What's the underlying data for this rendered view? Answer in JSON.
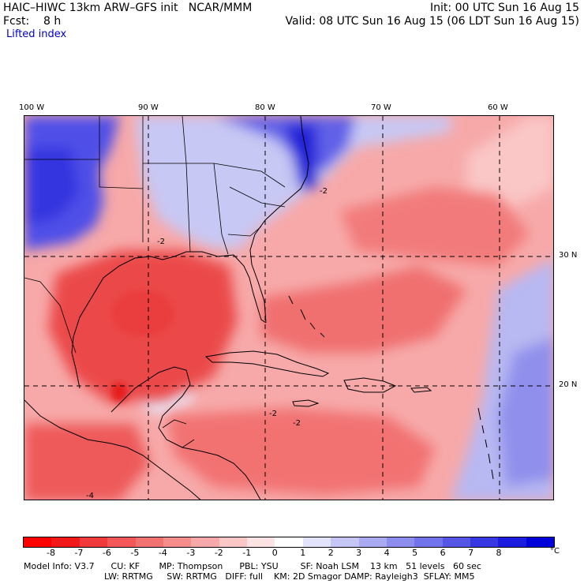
{
  "header": {
    "title_line": "HAIC–HIWC 13km ARW–GFS init   NCAR/MMM",
    "fcst_line": "Fcst:    8 h",
    "init_line": "Init: 00 UTC Sun 16 Aug 15",
    "valid_line": "Valid: 08 UTC Sun 16 Aug 15 (06 LDT Sun 16 Aug 15)",
    "field_name": "Lifted index"
  },
  "map": {
    "longitude_labels": [
      "100 W",
      "90 W",
      "80 W",
      "70 W",
      "60 W"
    ],
    "latitude_labels": [
      "30 N",
      "20 N"
    ],
    "contour_labels": [
      "-2",
      "-2",
      "-2",
      "-2",
      "-4"
    ],
    "colors": {
      "land_border": "#000000",
      "grid_line": "#000000",
      "unstable": "#e84848",
      "stable": "#3030e0"
    }
  },
  "colorbar": {
    "colors": [
      "#ff0000",
      "#f01818",
      "#ef3b3b",
      "#f45757",
      "#f27272",
      "#f58d8d",
      "#f7a9a9",
      "#fac6c6",
      "#fde3e3",
      "#ffffff",
      "#e3e3fb",
      "#c6c6f6",
      "#aaaaf2",
      "#8d8dee",
      "#7272ea",
      "#5555e6",
      "#3838e2",
      "#1c1cde",
      "#0000d8"
    ],
    "labels": [
      "-8",
      "-7",
      "-6",
      "-5",
      "-4",
      "-3",
      "-2",
      "-1",
      "0",
      "1",
      "2",
      "3",
      "4",
      "5",
      "6",
      "7",
      "8"
    ],
    "unit": "°C"
  },
  "model_info": {
    "line1": "Model Info: V3.7      CU: KF       MP: Thompson      PBL: YSU        SF: Noah LSM    13 km   51 levels   60 sec",
    "line2": "LW: RRTMG     SW: RRTMG   DIFF: full    KM: 2D Smagor DAMP: Rayleigh3  SFLAY: MM5"
  }
}
